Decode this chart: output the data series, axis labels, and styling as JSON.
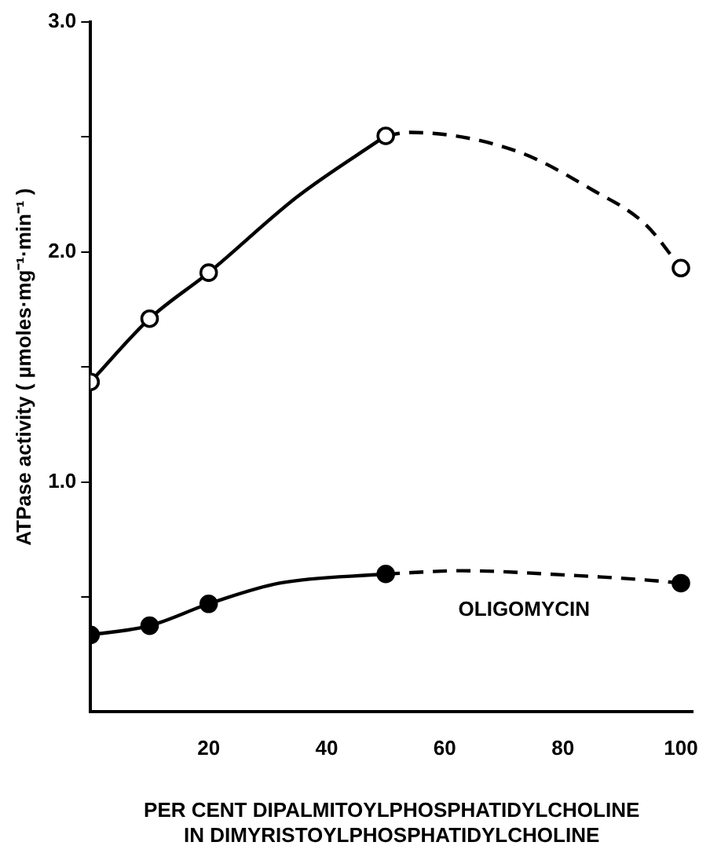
{
  "chart_data": {
    "type": "line",
    "xlabel": "PER CENT DIPALMITOYLPHOSPHATIDYLCHOLINE\nIN DIMYRISTOYLPHOSPHATIDYLCHOLINE",
    "ylabel": "ATPase activity ( µmoles·mg⁻¹·min⁻¹ )",
    "xlim": [
      0,
      102
    ],
    "xticks": [
      20,
      40,
      60,
      80,
      100
    ],
    "ylim": [
      0,
      3
    ],
    "yticks": [
      {
        "value": 0.5,
        "label": null
      },
      {
        "value": 1,
        "label": "1.0"
      },
      {
        "value": 1.5,
        "label": null
      },
      {
        "value": 2,
        "label": "2.0"
      },
      {
        "value": 2.5,
        "label": null
      },
      {
        "value": 3,
        "label": "3.0"
      }
    ],
    "grid": false,
    "legend": false,
    "series": [
      {
        "type": "scatter",
        "color": "#ffffff",
        "marker": "circle",
        "x": [
          0,
          10,
          20,
          50,
          100
        ],
        "values": [
          1.435,
          1.71,
          1.91,
          2.505,
          1.93
        ]
      },
      {
        "color": "#000000",
        "marker": "none",
        "line_style": "solid",
        "x": [
          0,
          10,
          20,
          35,
          50
        ],
        "values": [
          1.435,
          1.71,
          1.91,
          2.24,
          2.505
        ]
      },
      {
        "color": "#000000",
        "marker": "none",
        "line_style": "dashed",
        "x": [
          50,
          54,
          72,
          85,
          94,
          100
        ],
        "values": [
          2.505,
          2.52,
          2.44,
          2.27,
          2.12,
          1.93
        ]
      },
      {
        "type": "scatter",
        "color": "#000000",
        "marker": "circle",
        "x": [
          0,
          10,
          20,
          50,
          100
        ],
        "values": [
          0.335,
          0.375,
          0.47,
          0.6,
          0.56
        ]
      },
      {
        "color": "#000000",
        "marker": "none",
        "line_style": "solid",
        "x": [
          0,
          10,
          20,
          32,
          50
        ],
        "values": [
          0.335,
          0.375,
          0.47,
          0.56,
          0.6
        ]
      },
      {
        "color": "#000000",
        "marker": "none",
        "line_style": "dashed",
        "x": [
          50,
          63,
          80,
          94,
          100
        ],
        "values": [
          0.6,
          0.614,
          0.596,
          0.574,
          0.56
        ]
      }
    ],
    "annotations": [
      "OLIGOMYCIN"
    ]
  }
}
